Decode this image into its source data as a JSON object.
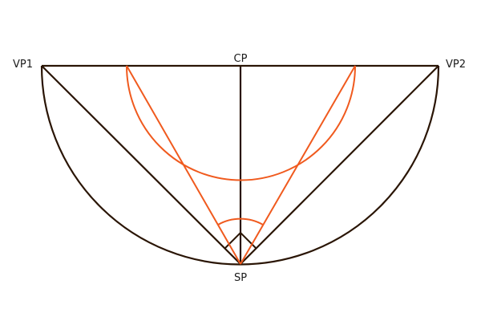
{
  "labels": {
    "vp1": "VP1",
    "vp2": "VP2",
    "cp": "CP",
    "sp": "SP"
  },
  "colors": {
    "construction": "#2a1505",
    "accent": "#f05a1e",
    "background": "#ffffff"
  }
}
